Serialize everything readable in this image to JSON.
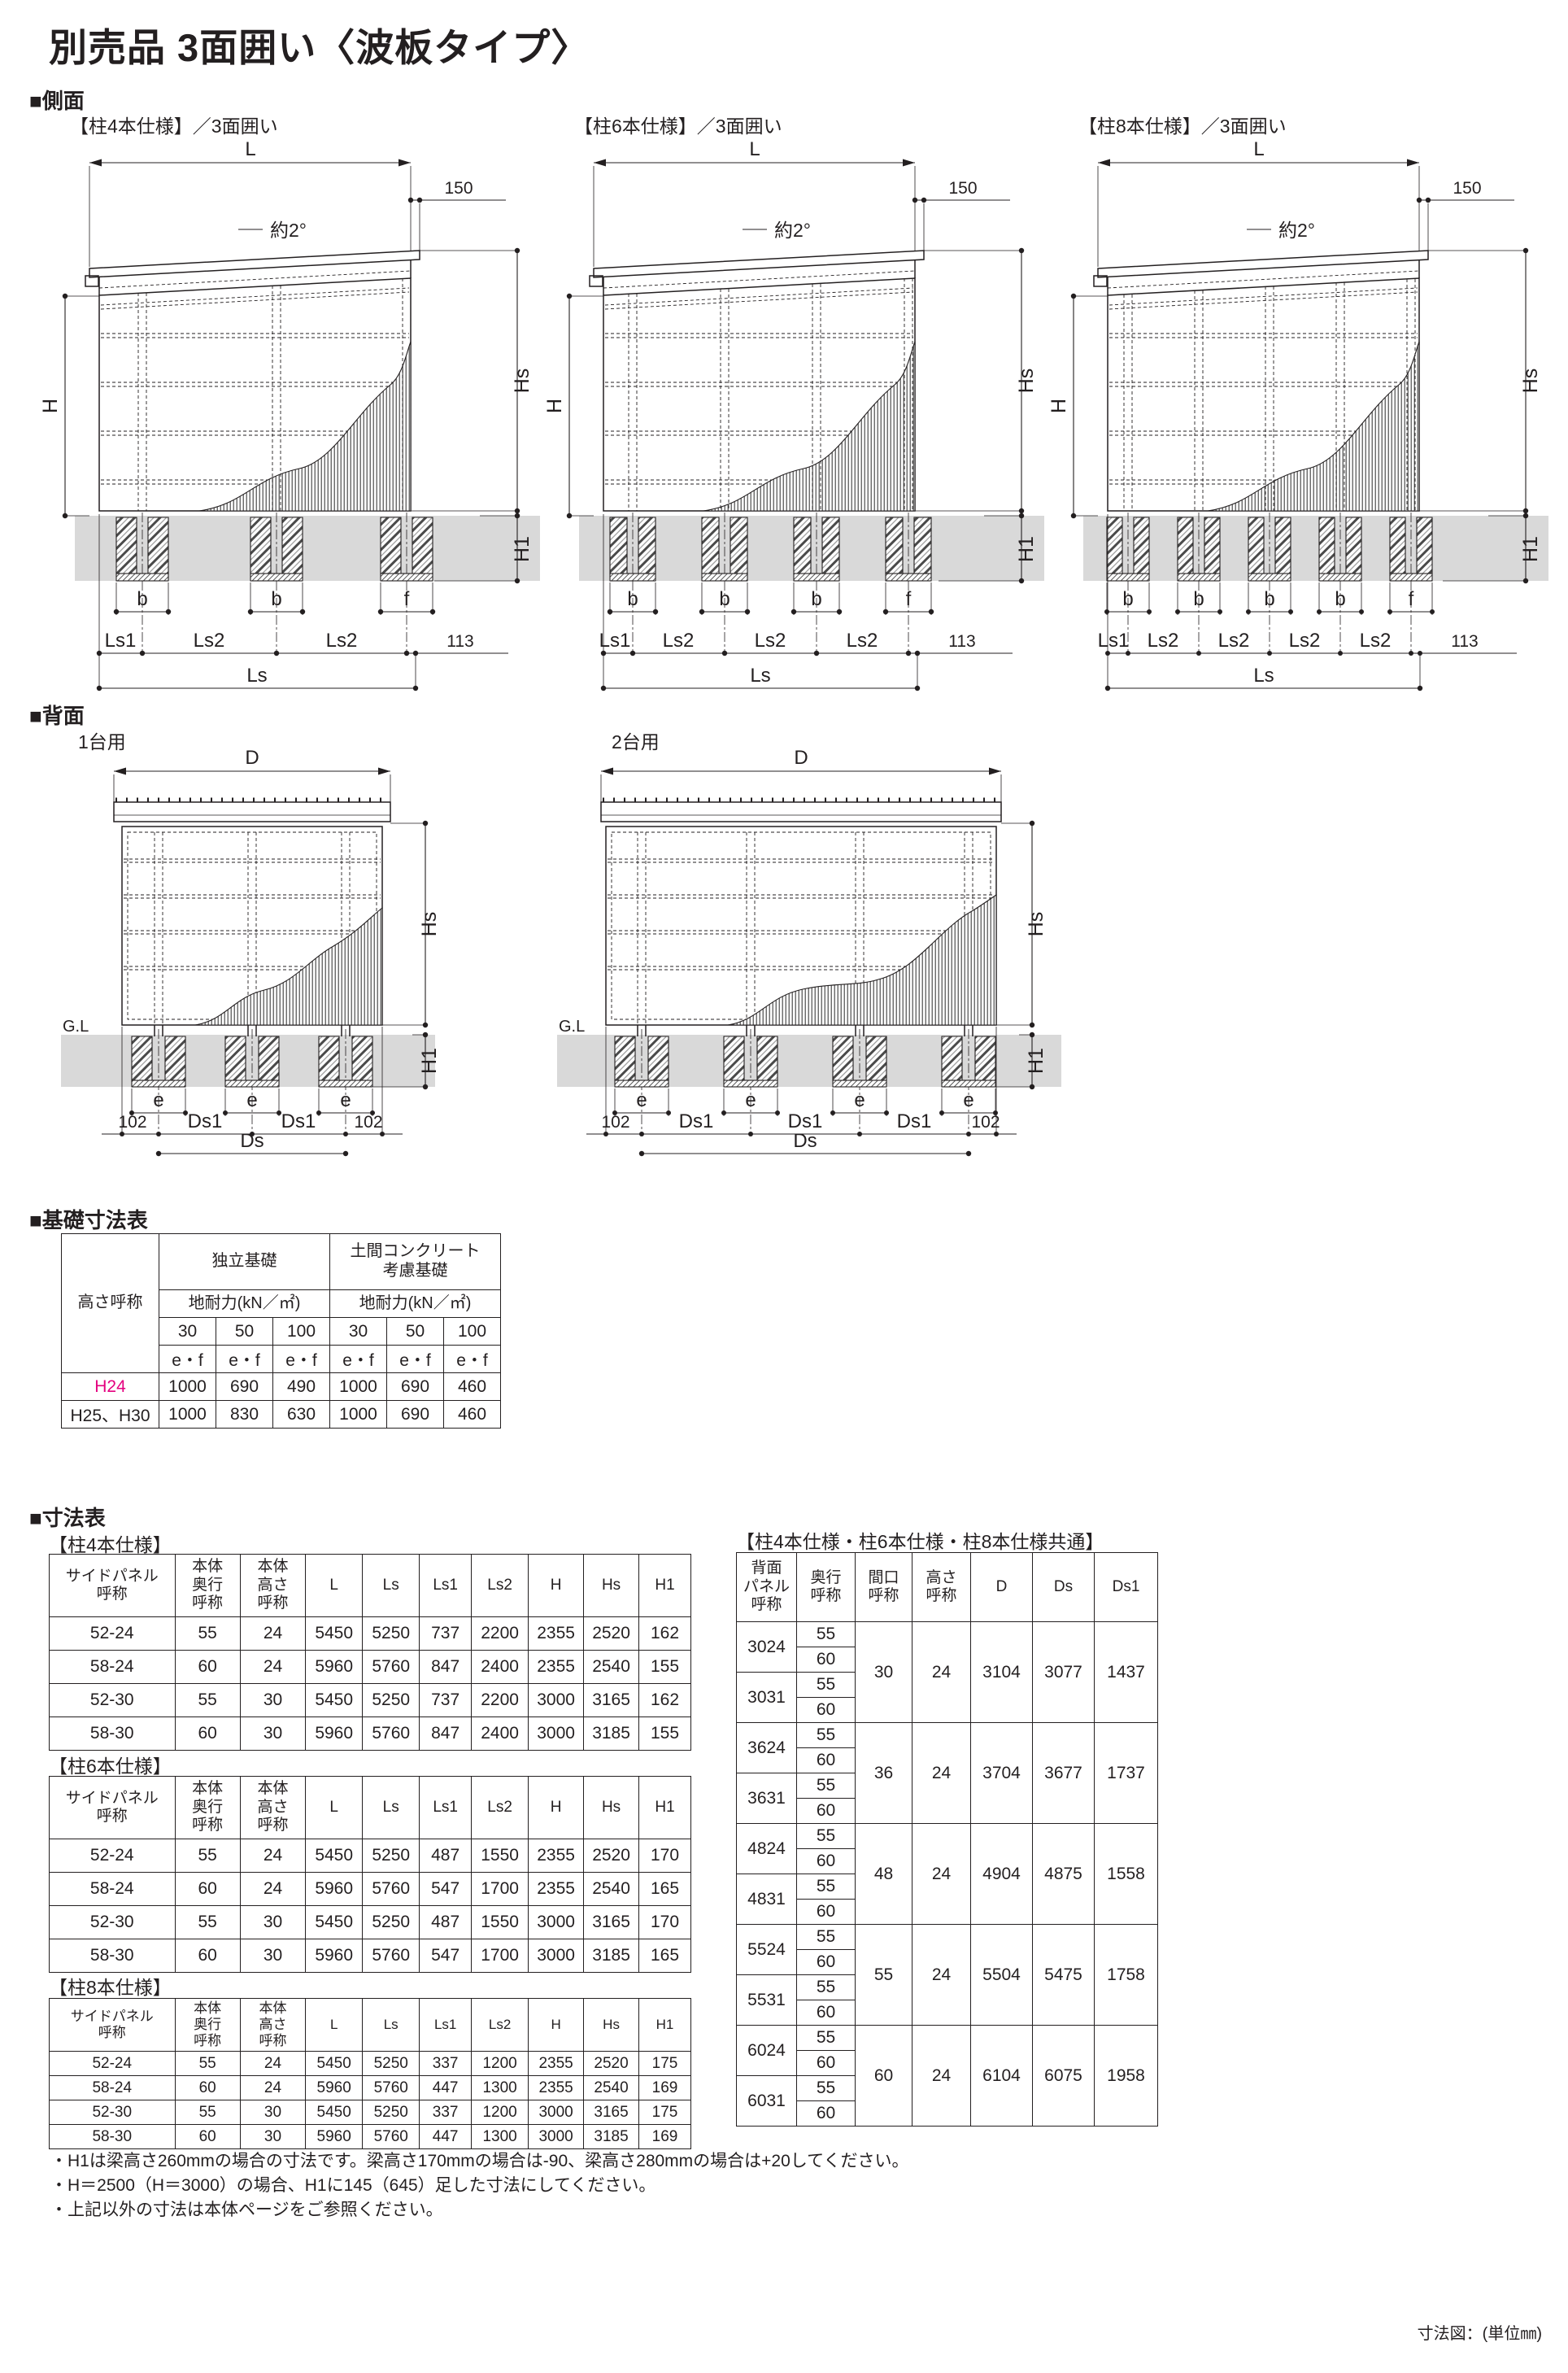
{
  "colors": {
    "ink": "#231f20",
    "accent_magenta": "#e4007f",
    "ground_gray": "#d9d9d9"
  },
  "page_title": "別売品 3面囲い〈波板タイプ〉",
  "side_section": {
    "heading": "■側面",
    "titles": [
      "【柱4本仕様】／3面囲い",
      "【柱6本仕様】／3面囲い",
      "【柱8本仕様】／3面囲い"
    ]
  },
  "back_section": {
    "heading": "■背面",
    "titles": [
      "1台用",
      "2台用"
    ]
  },
  "dg": {
    "L": "L",
    "dim150": "150",
    "slope": "約2°",
    "H": "H",
    "Hs": "Hs",
    "H1": "H1",
    "b": "b",
    "f": "f",
    "Ls1": "Ls1",
    "Ls2": "Ls2",
    "n113": "113",
    "Ls": "Ls",
    "D": "D",
    "GL": "G.L",
    "e": "e",
    "n102": "102",
    "Ds": "Ds",
    "Ds1": "Ds1"
  },
  "foundation_section": {
    "heading": "■基礎寸法表"
  },
  "foundation_table": {
    "col_height": "高さ呼称",
    "group1": "独立基礎",
    "group2": "土間コンクリート\n考慮基礎",
    "bearing": "地耐力(kN／㎡)",
    "loads_row": [
      "30",
      "50",
      "100",
      "30",
      "50",
      "100"
    ],
    "ef_row": [
      "e・f",
      "e・f",
      "e・f",
      "e・f",
      "e・f",
      "e・f"
    ],
    "rows": [
      {
        "name": "H24",
        "values": [
          "1000",
          "690",
          "490",
          "1000",
          "690",
          "460"
        ]
      },
      {
        "name": "H25、H30",
        "values": [
          "1000",
          "830",
          "630",
          "1000",
          "690",
          "460"
        ]
      }
    ]
  },
  "dim_section": {
    "heading": "■寸法表"
  },
  "dim_tables": {
    "headers": [
      "サイドパネル\n呼称",
      "本体\n奥行\n呼称",
      "本体\n高さ\n呼称",
      "L",
      "Ls",
      "Ls1",
      "Ls2",
      "H",
      "Hs",
      "H1"
    ],
    "tables": [
      {
        "title": "【柱4本仕様】",
        "rows": [
          [
            "52-24",
            "55",
            "24",
            "5450",
            "5250",
            "737",
            "2200",
            "2355",
            "2520",
            "162"
          ],
          [
            "58-24",
            "60",
            "24",
            "5960",
            "5760",
            "847",
            "2400",
            "2355",
            "2540",
            "155"
          ],
          [
            "52-30",
            "55",
            "30",
            "5450",
            "5250",
            "737",
            "2200",
            "3000",
            "3165",
            "162"
          ],
          [
            "58-30",
            "60",
            "30",
            "5960",
            "5760",
            "847",
            "2400",
            "3000",
            "3185",
            "155"
          ]
        ]
      },
      {
        "title": "【柱6本仕様】",
        "rows": [
          [
            "52-24",
            "55",
            "24",
            "5450",
            "5250",
            "487",
            "1550",
            "2355",
            "2520",
            "170"
          ],
          [
            "58-24",
            "60",
            "24",
            "5960",
            "5760",
            "547",
            "1700",
            "2355",
            "2540",
            "165"
          ],
          [
            "52-30",
            "55",
            "30",
            "5450",
            "5250",
            "487",
            "1550",
            "3000",
            "3165",
            "170"
          ],
          [
            "58-30",
            "60",
            "30",
            "5960",
            "5760",
            "547",
            "1700",
            "3000",
            "3185",
            "165"
          ]
        ]
      },
      {
        "title": "【柱8本仕様】",
        "rows": [
          [
            "52-24",
            "55",
            "24",
            "5450",
            "5250",
            "337",
            "1200",
            "2355",
            "2520",
            "175"
          ],
          [
            "58-24",
            "60",
            "24",
            "5960",
            "5760",
            "447",
            "1300",
            "2355",
            "2540",
            "169"
          ],
          [
            "52-30",
            "55",
            "30",
            "5450",
            "5250",
            "337",
            "1200",
            "3000",
            "3165",
            "175"
          ],
          [
            "58-30",
            "60",
            "30",
            "5960",
            "5760",
            "447",
            "1300",
            "3000",
            "3185",
            "169"
          ]
        ]
      }
    ]
  },
  "common_table": {
    "title": "【柱4本仕様・柱6本仕様・柱8本仕様共通】",
    "headers": [
      "背面\nパネル\n呼称",
      "奥行\n呼称",
      "間口\n呼称",
      "高さ\n呼称",
      "D",
      "Ds",
      "Ds1"
    ],
    "depth_values": [
      "55",
      "60"
    ],
    "groups": [
      {
        "panels": [
          "3024",
          "3031"
        ],
        "span": "30",
        "height": "24",
        "D": "3104",
        "Ds": "3077",
        "Ds1": "1437"
      },
      {
        "panels": [
          "3624",
          "3631"
        ],
        "span": "36",
        "height": "24",
        "D": "3704",
        "Ds": "3677",
        "Ds1": "1737"
      },
      {
        "panels": [
          "4824",
          "4831"
        ],
        "span": "48",
        "height": "24",
        "D": "4904",
        "Ds": "4875",
        "Ds1": "1558"
      },
      {
        "panels": [
          "5524",
          "5531"
        ],
        "span": "55",
        "height": "24",
        "D": "5504",
        "Ds": "5475",
        "Ds1": "1758"
      },
      {
        "panels": [
          "6024",
          "6031"
        ],
        "span": "60",
        "height": "24",
        "D": "6104",
        "Ds": "6075",
        "Ds1": "1958"
      }
    ]
  },
  "notes": [
    "・H1は梁高さ260mmの場合の寸法です。梁高さ170mmの場合は-90、梁高さ280mmの場合は+20してください。",
    "・H＝2500（H＝3000）の場合、H1に145（645）足した寸法にしてください。",
    "・上記以外の寸法は本体ページをご参照ください。"
  ],
  "footer_note": "寸法図：(単位㎜)"
}
